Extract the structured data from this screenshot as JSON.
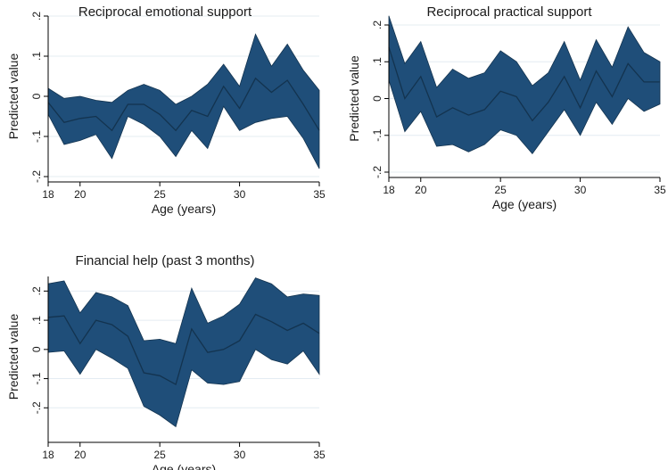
{
  "colors": {
    "band_fill": "#1f4e79",
    "band_edge": "#13334f",
    "mean_line": "#13334f",
    "grid": "#e4ecf2",
    "axis": "#000000"
  },
  "chart_data": [
    {
      "type": "area",
      "title": "Reciprocal emotional support",
      "xlabel": "Age (years)",
      "ylabel": "Predicted value",
      "xlim": [
        18,
        35
      ],
      "ylim": [
        -0.2,
        0.2
      ],
      "xticks": [
        18,
        20,
        25,
        30,
        35
      ],
      "xtick_labels": [
        "18",
        "20",
        "25",
        "30",
        "35"
      ],
      "yticks": [
        -0.2,
        -0.1,
        0,
        0.1,
        0.2
      ],
      "ytick_labels": [
        "-.2",
        "-.1",
        "0",
        ".1",
        ".2"
      ],
      "grid": true,
      "x": [
        18,
        19,
        20,
        21,
        22,
        23,
        24,
        25,
        26,
        27,
        28,
        29,
        30,
        31,
        32,
        33,
        34,
        35
      ],
      "series": [
        {
          "values": [
            -0.015,
            -0.065,
            -0.055,
            -0.05,
            -0.085,
            -0.02,
            -0.02,
            -0.045,
            -0.085,
            -0.035,
            -0.05,
            0.025,
            -0.03,
            0.045,
            0.01,
            0.04,
            -0.02,
            -0.085
          ]
        },
        {
          "values": [
            -0.045,
            -0.12,
            -0.11,
            -0.095,
            -0.155,
            -0.05,
            -0.07,
            -0.1,
            -0.15,
            -0.085,
            -0.13,
            -0.025,
            -0.085,
            -0.065,
            -0.055,
            -0.05,
            -0.105,
            -0.18
          ]
        },
        {
          "values": [
            0.02,
            -0.005,
            0.0,
            -0.01,
            -0.015,
            0.015,
            0.03,
            0.015,
            -0.02,
            0.0,
            0.03,
            0.08,
            0.025,
            0.155,
            0.075,
            0.13,
            0.065,
            0.015
          ]
        }
      ]
    },
    {
      "type": "area",
      "title": "Reciprocal practical support",
      "xlabel": "Age (years)",
      "ylabel": "Predicted value",
      "xlim": [
        18,
        35
      ],
      "ylim": [
        -0.2,
        0.2
      ],
      "xticks": [
        18,
        20,
        25,
        30,
        35
      ],
      "xtick_labels": [
        "18",
        "20",
        "25",
        "30",
        "35"
      ],
      "yticks": [
        -0.2,
        -0.1,
        0,
        0.1,
        0.2
      ],
      "ytick_labels": [
        "-.2",
        "-.1",
        "0",
        ".1",
        ".2"
      ],
      "grid": true,
      "x": [
        18,
        19,
        20,
        21,
        22,
        23,
        24,
        25,
        26,
        27,
        28,
        29,
        30,
        31,
        32,
        33,
        34,
        35
      ],
      "series": [
        {
          "values": [
            0.14,
            0.0,
            0.06,
            -0.05,
            -0.025,
            -0.045,
            -0.03,
            0.02,
            0.005,
            -0.06,
            -0.01,
            0.06,
            -0.025,
            0.075,
            0.005,
            0.095,
            0.045,
            0.045
          ]
        },
        {
          "values": [
            0.05,
            -0.09,
            -0.035,
            -0.13,
            -0.125,
            -0.145,
            -0.125,
            -0.085,
            -0.1,
            -0.15,
            -0.09,
            -0.03,
            -0.1,
            -0.01,
            -0.07,
            0.0,
            -0.035,
            -0.015
          ]
        },
        {
          "values": [
            0.225,
            0.095,
            0.155,
            0.03,
            0.08,
            0.055,
            0.07,
            0.13,
            0.1,
            0.035,
            0.07,
            0.155,
            0.05,
            0.16,
            0.085,
            0.195,
            0.125,
            0.1
          ]
        }
      ]
    },
    {
      "type": "area",
      "title": "Financial help (past 3 months)",
      "xlabel": "Age (years)",
      "ylabel": "Predicted value",
      "xlim": [
        18,
        35
      ],
      "ylim": [
        -0.3,
        0.25
      ],
      "xticks": [
        18,
        20,
        25,
        30,
        35
      ],
      "xtick_labels": [
        "18",
        "20",
        "25",
        "30",
        "35"
      ],
      "yticks": [
        -0.2,
        -0.1,
        0,
        0.1,
        0.2
      ],
      "ytick_labels": [
        "-.2",
        "-.1",
        "0",
        ".1",
        ".2"
      ],
      "grid": true,
      "x": [
        18,
        19,
        20,
        21,
        22,
        23,
        24,
        25,
        26,
        27,
        28,
        29,
        30,
        31,
        32,
        33,
        34,
        35
      ],
      "series": [
        {
          "values": [
            0.11,
            0.115,
            0.02,
            0.1,
            0.085,
            0.045,
            -0.08,
            -0.09,
            -0.12,
            0.07,
            -0.01,
            0.0,
            0.03,
            0.12,
            0.095,
            0.065,
            0.09,
            0.055
          ]
        },
        {
          "values": [
            -0.01,
            -0.005,
            -0.085,
            0.0,
            -0.03,
            -0.065,
            -0.195,
            -0.225,
            -0.265,
            -0.07,
            -0.115,
            -0.12,
            -0.11,
            0.0,
            -0.035,
            -0.05,
            -0.005,
            -0.085
          ]
        },
        {
          "values": [
            0.225,
            0.235,
            0.125,
            0.195,
            0.18,
            0.15,
            0.03,
            0.035,
            0.02,
            0.21,
            0.09,
            0.115,
            0.155,
            0.245,
            0.225,
            0.18,
            0.19,
            0.185
          ]
        }
      ]
    }
  ]
}
